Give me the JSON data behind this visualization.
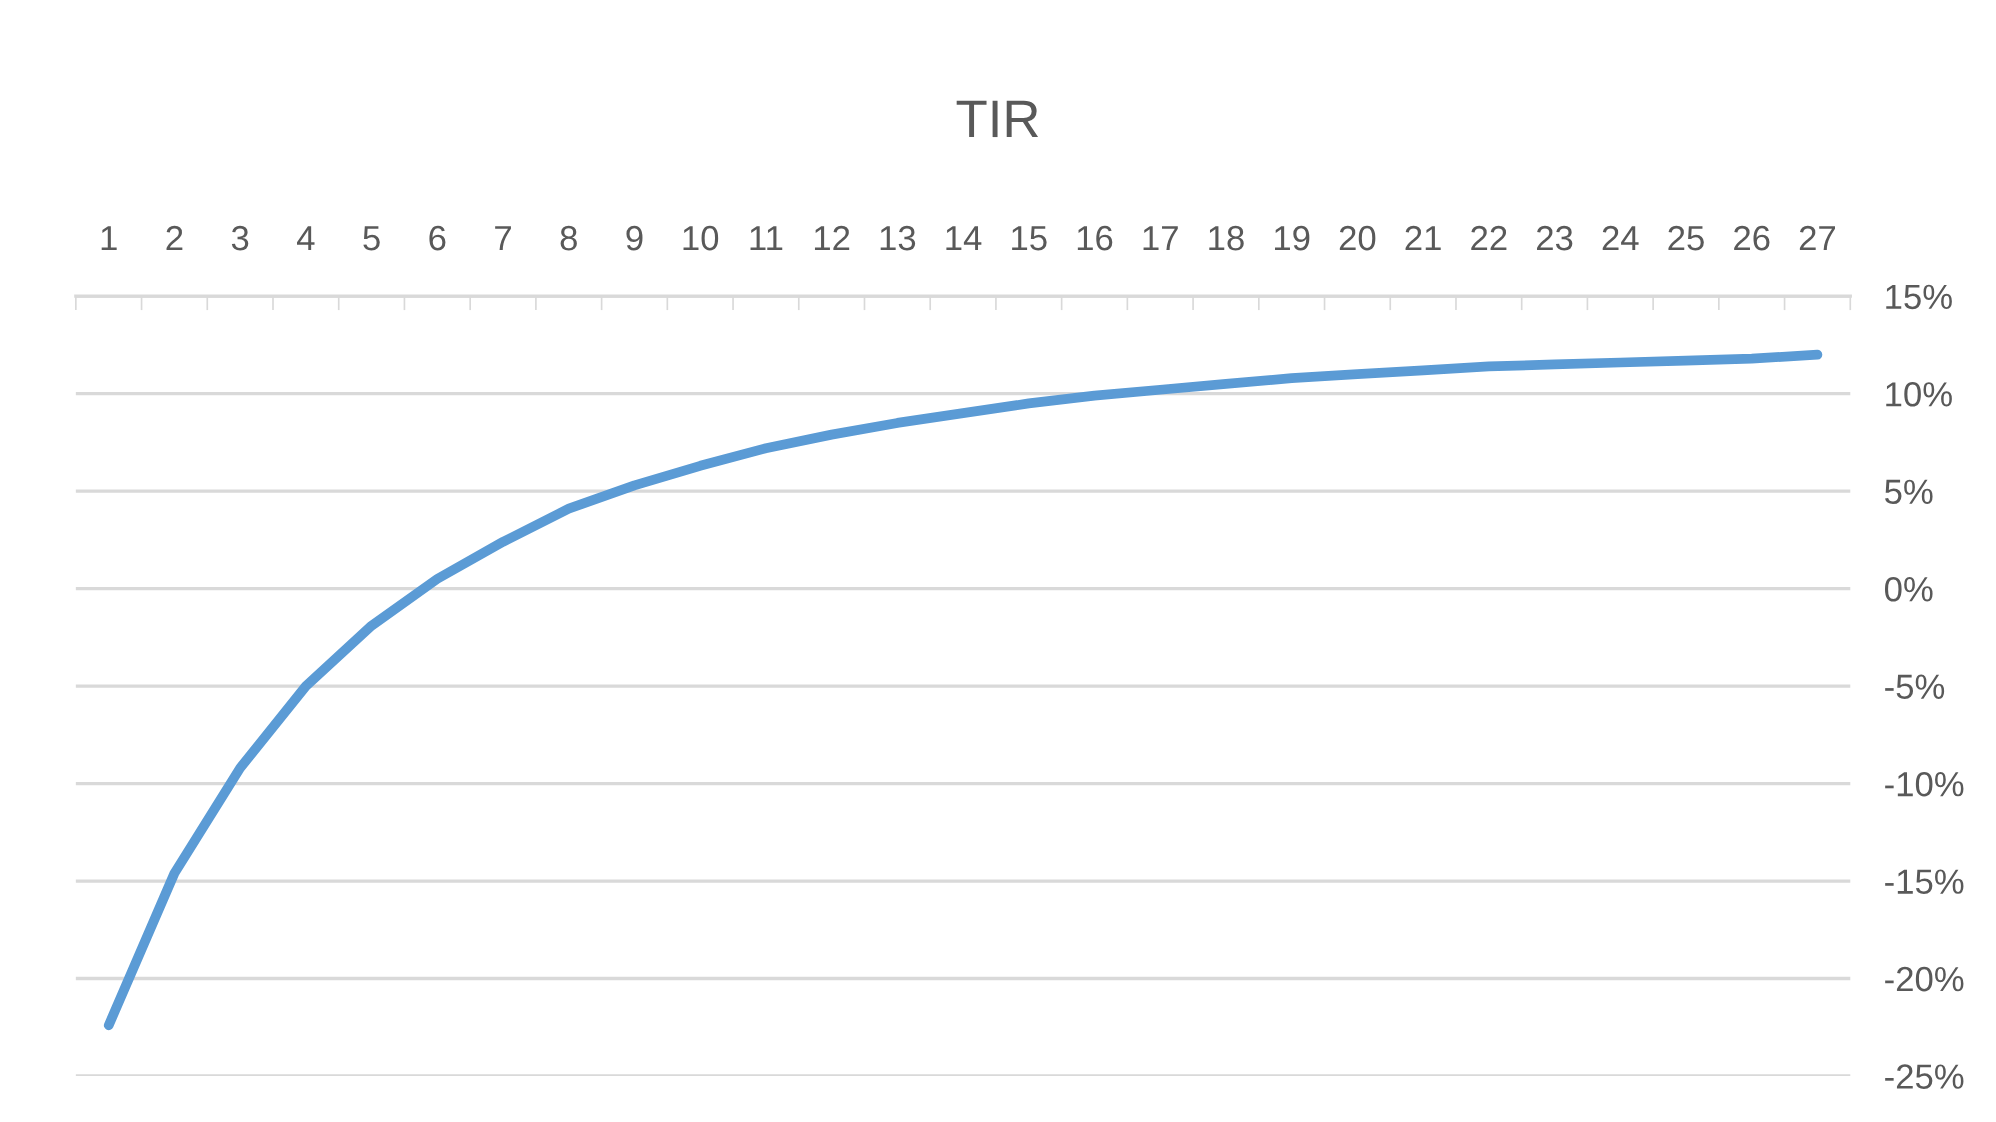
{
  "chart_data": {
    "type": "line",
    "title": "TIR",
    "categories": [
      "1",
      "2",
      "3",
      "4",
      "5",
      "6",
      "7",
      "8",
      "9",
      "10",
      "11",
      "12",
      "13",
      "14",
      "15",
      "16",
      "17",
      "18",
      "19",
      "20",
      "21",
      "22",
      "23",
      "24",
      "25",
      "26",
      "27"
    ],
    "series": [
      {
        "color": "#5b9bd5",
        "values": [
          -22.4,
          -14.6,
          -9.2,
          -5.0,
          -1.9,
          0.5,
          2.4,
          4.1,
          5.3,
          6.3,
          7.2,
          7.9,
          8.5,
          9.0,
          9.5,
          9.9,
          10.2,
          10.5,
          10.8,
          11.0,
          11.2,
          11.4,
          11.5,
          11.6,
          11.7,
          11.8,
          12.0
        ]
      }
    ],
    "ylim": [
      -25,
      15
    ],
    "yticks": [
      {
        "value": -25,
        "label": "-25%"
      },
      {
        "value": -20,
        "label": "-20%"
      },
      {
        "value": -15,
        "label": "-15%"
      },
      {
        "value": -10,
        "label": "-10%"
      },
      {
        "value": -5,
        "label": "-5%"
      },
      {
        "value": 0,
        "label": "0%"
      },
      {
        "value": 5,
        "label": "5%"
      },
      {
        "value": 10,
        "label": "10%"
      },
      {
        "value": 15,
        "label": "15%"
      }
    ],
    "grid": "y",
    "marker": "none",
    "line_style": "solid"
  }
}
